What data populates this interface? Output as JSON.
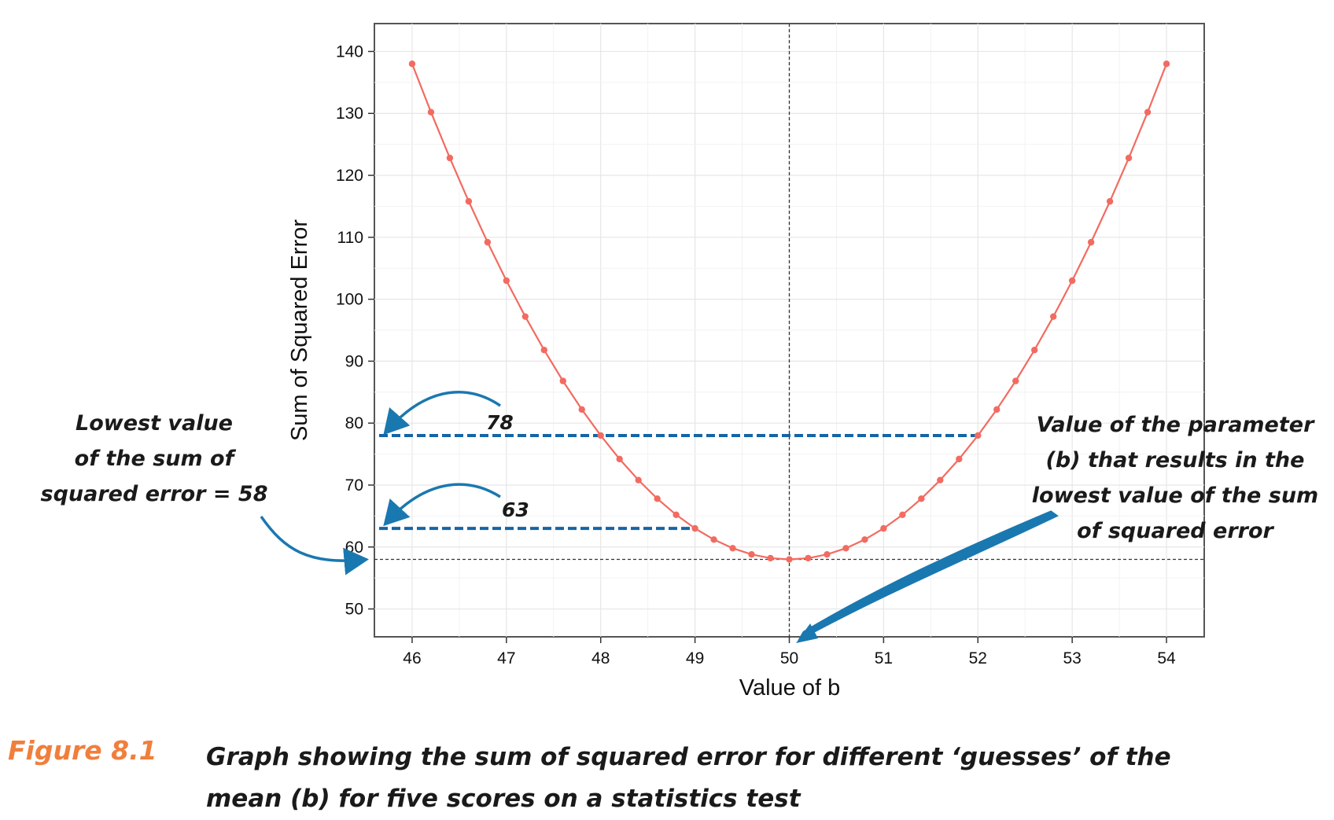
{
  "chart_data": {
    "type": "line",
    "xlabel": "Value of b",
    "ylabel": "Sum of Squared Error",
    "xlim": [
      45.6,
      54.4
    ],
    "ylim": [
      45.5,
      144.5
    ],
    "xticks": [
      46,
      47,
      48,
      49,
      50,
      51,
      52,
      53,
      54
    ],
    "yticks": [
      50,
      60,
      70,
      80,
      90,
      100,
      110,
      120,
      130,
      140
    ],
    "grid": true,
    "series": [
      {
        "color": "#f26b61",
        "x": [
          46.0,
          46.2,
          46.4,
          46.6,
          46.8,
          47.0,
          47.2,
          47.4,
          47.6,
          47.8,
          48.0,
          48.2,
          48.4,
          48.6,
          48.8,
          49.0,
          49.2,
          49.4,
          49.6,
          49.8,
          50.0,
          50.2,
          50.4,
          50.6,
          50.8,
          51.0,
          51.2,
          51.4,
          51.6,
          51.8,
          52.0,
          52.2,
          52.4,
          52.6,
          52.8,
          53.0,
          53.2,
          53.4,
          53.6,
          53.8,
          54.0
        ],
        "y": [
          138.0,
          130.2,
          122.8,
          115.8,
          109.2,
          103.0,
          97.2,
          91.8,
          86.8,
          82.2,
          78.0,
          74.2,
          70.8,
          67.8,
          65.2,
          63.0,
          61.2,
          59.8,
          58.8,
          58.2,
          58.0,
          58.2,
          58.8,
          59.8,
          61.2,
          63.0,
          65.2,
          67.8,
          70.8,
          74.2,
          78.0,
          82.2,
          86.8,
          91.8,
          97.2,
          103.0,
          109.2,
          115.8,
          122.8,
          130.2,
          138.0
        ]
      }
    ],
    "reference_lines": {
      "vertical_x": 50,
      "horizontal_y": 58,
      "style": "dotted",
      "color": "#333333"
    },
    "highlight_lines": [
      {
        "y": 78,
        "x_end": 52,
        "label": "78",
        "color": "#1565a6"
      },
      {
        "y": 63,
        "x_end": 49,
        "label": "63",
        "color": "#1565a6"
      }
    ],
    "accent_color": "#1a78b0"
  },
  "annotations": {
    "lowest_value": [
      "Lowest value",
      "of the sum of",
      "squared error = 58"
    ],
    "parameter_value": [
      "Value of the parameter",
      "(b) that results in the",
      "lowest value of the sum",
      "of squared error"
    ]
  },
  "caption": {
    "label": "Figure 8.1",
    "text": "Graph showing the sum of squared error for different ‘guesses’ of the mean (b) for five scores on a statistics test",
    "label_color": "#f07f3c"
  }
}
